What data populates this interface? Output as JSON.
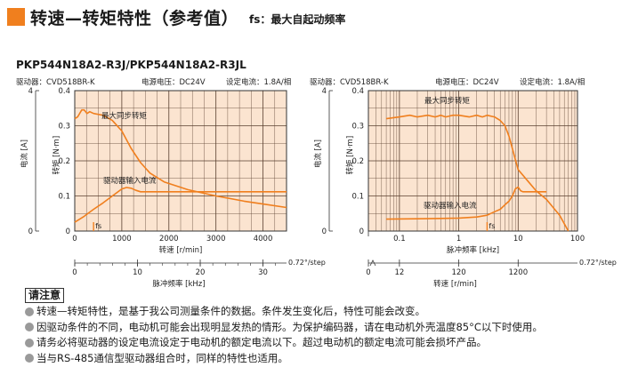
{
  "header": {
    "title": "转速—转矩特性（参考值）",
    "subtitle": "fs：最大自起动频率",
    "accent_color": "#f07f1e"
  },
  "model": "PKP544N18A2-R3J/PKP544N18A2-R3JL",
  "chart_data": [
    {
      "type": "line",
      "info": {
        "driver": "驱动器：CVD518BR-K",
        "voltage": "电源电压：DC24V",
        "current": "设定电流：1.8A/相"
      },
      "x_axis": {
        "label": "转速",
        "unit": "[r/min]",
        "ticks": [
          "0",
          "1000",
          "2000",
          "3000",
          "4000"
        ],
        "xlim": [
          0,
          4500
        ]
      },
      "x2_axis": {
        "label": "脉冲频率",
        "unit": "[kHz]",
        "ticks": [
          "0",
          "10",
          "20",
          "30"
        ],
        "xlim": [
          0,
          33.75
        ],
        "step_label": "0.72°/step"
      },
      "y_axis": {
        "label": "转矩",
        "unit": "[N·m]",
        "ticks": [
          "0",
          "0.1",
          "0.2",
          "0.3",
          "0.4"
        ],
        "ylim": [
          0,
          0.4
        ]
      },
      "y2_axis": {
        "label": "电流",
        "unit": "[A]",
        "ticks": [
          "0",
          "4"
        ],
        "ylim": [
          0,
          4
        ]
      },
      "fs_label": "fs",
      "fs_x": 400,
      "series": [
        {
          "name": "最大同步转矩",
          "axis": "y",
          "color": "#f07f1e",
          "x": [
            0,
            60,
            150,
            200,
            260,
            320,
            400,
            600,
            800,
            1000,
            1200,
            1400,
            1600,
            1900,
            2400,
            3000,
            3600,
            4000,
            4500
          ],
          "y": [
            0.32,
            0.325,
            0.345,
            0.345,
            0.335,
            0.34,
            0.335,
            0.33,
            0.315,
            0.285,
            0.235,
            0.195,
            0.165,
            0.14,
            0.118,
            0.1,
            0.085,
            0.077,
            0.067
          ]
        },
        {
          "name": "驱动器输入电流",
          "axis": "y2",
          "color": "#f07f1e",
          "x": [
            0,
            200,
            400,
            600,
            800,
            1000,
            1100,
            1200,
            1300,
            1400,
            1600,
            2000,
            3000,
            4500
          ],
          "y": [
            0.25,
            0.42,
            0.62,
            0.8,
            1.0,
            1.2,
            1.24,
            1.22,
            1.16,
            1.12,
            1.12,
            1.12,
            1.12,
            1.12
          ]
        }
      ]
    },
    {
      "type": "line",
      "info": {
        "driver": "驱动器：CVD518BR-K",
        "voltage": "电源电压：DC24V",
        "current": "设定电流：1.8A/相"
      },
      "x_axis": {
        "label": "脉冲频率",
        "unit": "[kHz]",
        "scale": "log",
        "ticks": [
          "0.1",
          "1",
          "10",
          "100"
        ],
        "xlim": [
          0.03,
          100
        ]
      },
      "x2_axis": {
        "label": "转速",
        "unit": "[r/min]",
        "ticks": [
          "0",
          "12",
          "120",
          "1200"
        ],
        "step_label": "0.72°/step"
      },
      "y_axis": {
        "label": "转矩",
        "unit": "[N·m]",
        "ticks": [
          "0",
          "0.1",
          "0.2",
          "0.3",
          "0.4"
        ],
        "ylim": [
          0,
          0.4
        ]
      },
      "y2_axis": {
        "label": "电流",
        "unit": "[A]",
        "ticks": [
          "0",
          "4"
        ],
        "ylim": [
          0,
          4
        ]
      },
      "fs_label": "fs",
      "fs_x": 3,
      "series": [
        {
          "name": "最大同步转矩",
          "axis": "y",
          "color": "#f07f1e",
          "x": [
            0.06,
            0.1,
            0.15,
            0.2,
            0.3,
            0.4,
            0.5,
            0.6,
            0.8,
            1,
            1.5,
            2,
            2.5,
            3,
            4,
            5,
            6,
            7,
            8,
            10,
            15,
            20,
            30,
            50,
            70
          ],
          "y": [
            0.32,
            0.325,
            0.33,
            0.325,
            0.33,
            0.325,
            0.33,
            0.325,
            0.33,
            0.33,
            0.325,
            0.33,
            0.325,
            0.33,
            0.325,
            0.315,
            0.3,
            0.27,
            0.235,
            0.175,
            0.14,
            0.115,
            0.09,
            0.045,
            0.0
          ]
        },
        {
          "name": "驱动器输入电流",
          "axis": "y2",
          "color": "#f07f1e",
          "x": [
            0.06,
            0.2,
            0.5,
            1,
            2,
            3,
            4,
            5,
            6,
            7,
            8,
            9,
            10,
            11,
            12,
            15,
            20,
            30
          ],
          "y": [
            0.34,
            0.35,
            0.36,
            0.37,
            0.4,
            0.45,
            0.55,
            0.62,
            0.75,
            0.85,
            1.0,
            1.2,
            1.25,
            1.15,
            1.12,
            1.12,
            1.12,
            1.12
          ]
        }
      ]
    }
  ],
  "notes": {
    "tag": "请注意",
    "items": [
      "转速—转矩特性，是基于我公司测量条件的数据。条件发生变化后，特性可能会改变。",
      "因驱动条件的不同，电动机可能会出现明显发热的情形。为保护编码器，请在电动机外壳温度85°C以下时使用。",
      "请务必将驱动器的设定电流设定于电动机的额定电流以下。超过电动机的额定电流可能会损坏产品。",
      "当与RS-485通信型驱动器组合时，同样的特性也适用。"
    ]
  }
}
